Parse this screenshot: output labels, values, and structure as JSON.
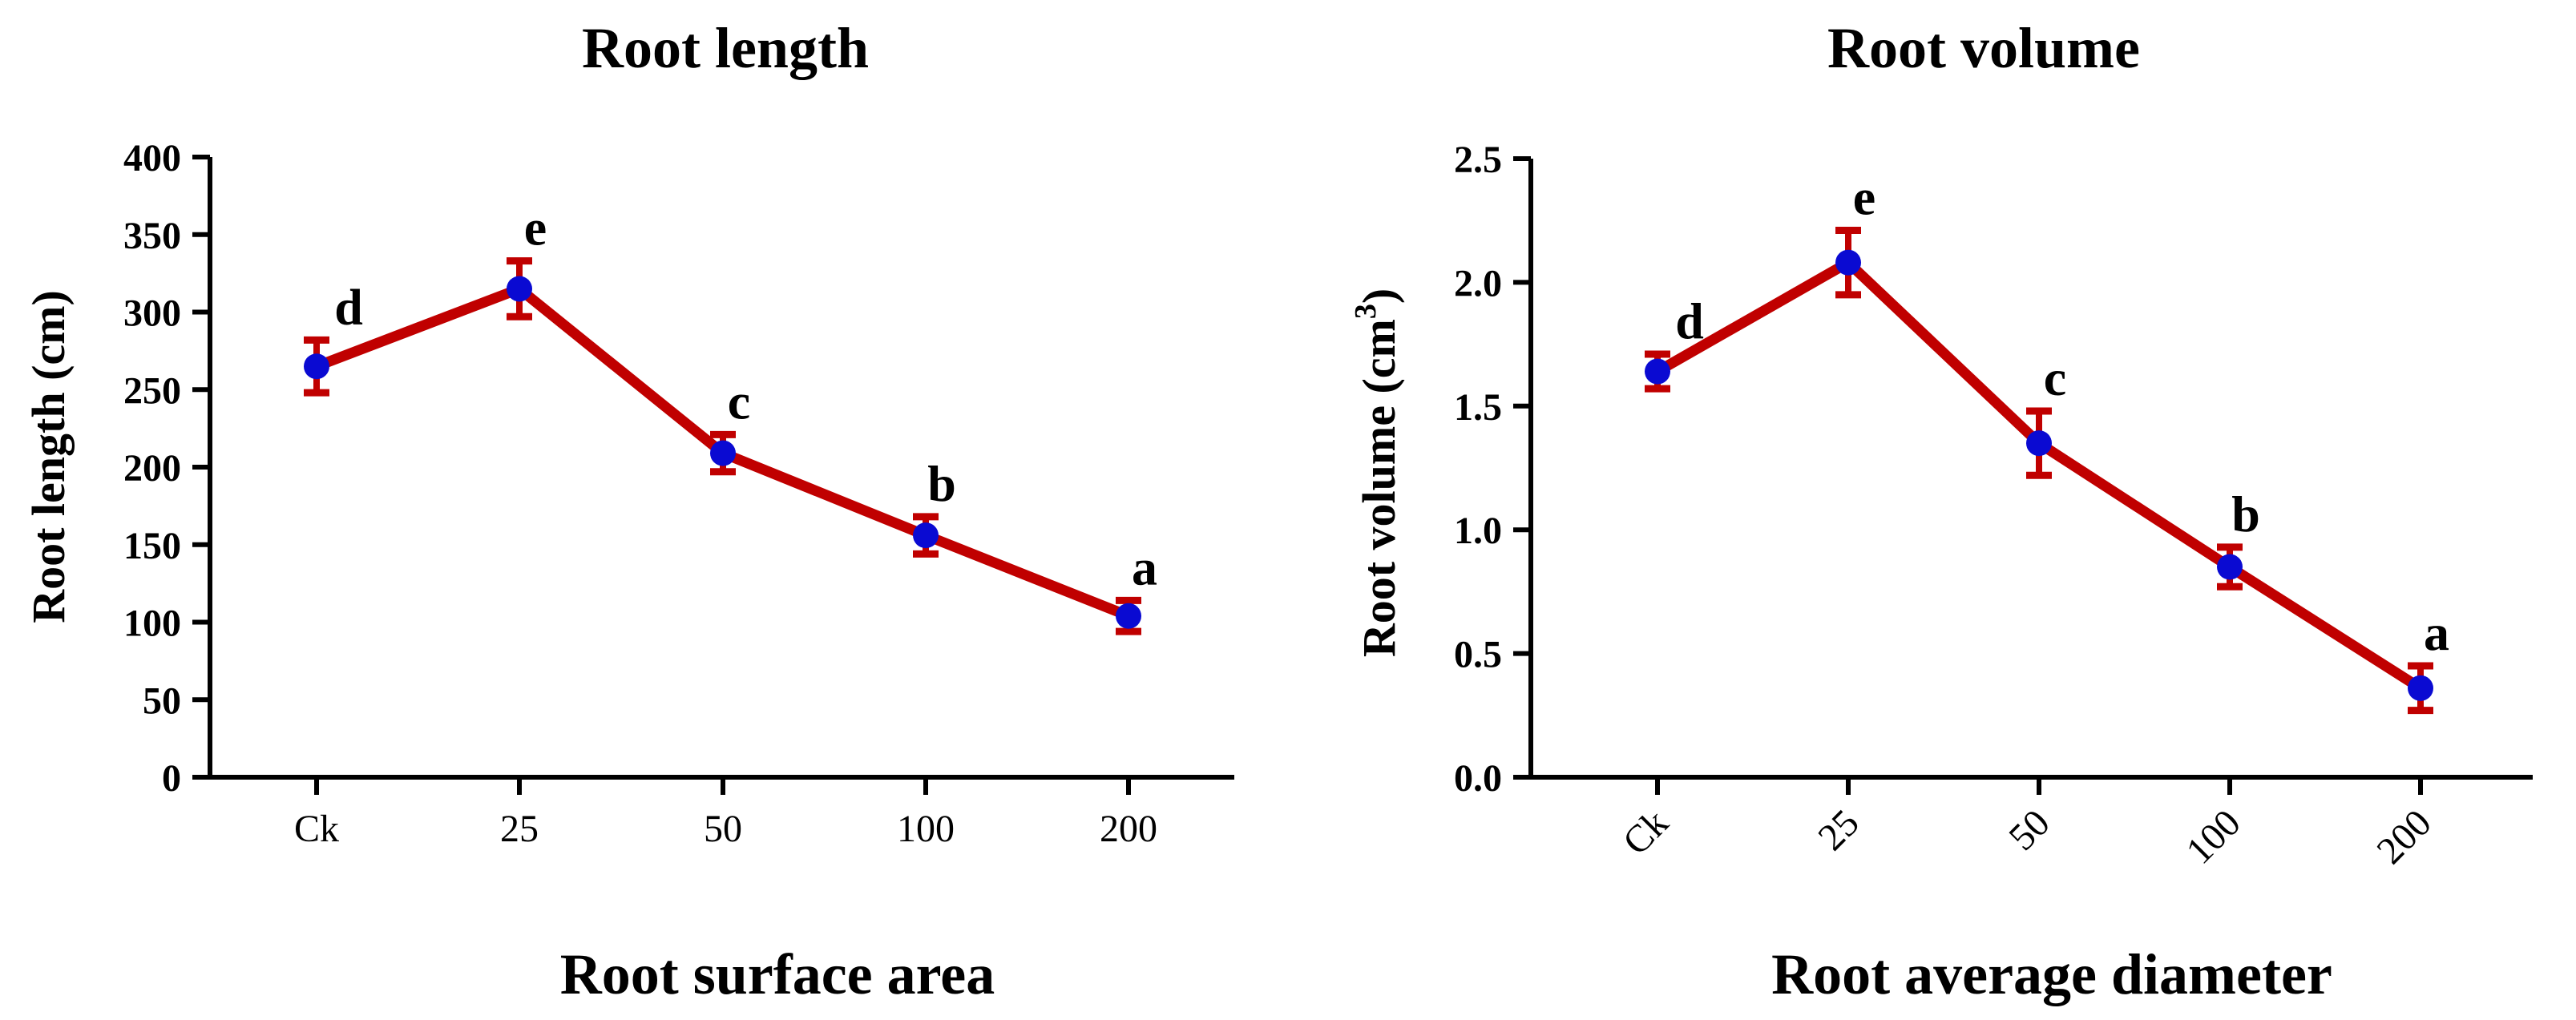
{
  "colors": {
    "line": "#c00000",
    "point": "#0a0ad2",
    "axis": "#000000"
  },
  "chart_data": [
    {
      "type": "line",
      "title": "Root length",
      "xlabel": "Root surface area",
      "ylabel": "Root length (cm)",
      "categories": [
        "Ck",
        "25",
        "50",
        "100",
        "200"
      ],
      "values": [
        265,
        315,
        209,
        156,
        104
      ],
      "errors": [
        17,
        18,
        12,
        12,
        10
      ],
      "letters": [
        "d",
        "e",
        "c",
        "b",
        "a"
      ],
      "ylim": [
        0,
        400
      ],
      "yticks": [
        "0",
        "50",
        "100",
        "150",
        "200",
        "250",
        "300",
        "350",
        "400"
      ],
      "xtick_rotation": 0
    },
    {
      "type": "line",
      "title": "Root volume",
      "xlabel": "Root average diameter",
      "ylabel": "Root volume (cm",
      "ylabel_sup": "3",
      "ylabel_end": ")",
      "categories": [
        "Ck",
        "25",
        "50",
        "100",
        "200"
      ],
      "values": [
        1.64,
        2.08,
        1.35,
        0.85,
        0.36
      ],
      "errors": [
        0.07,
        0.13,
        0.13,
        0.08,
        0.09
      ],
      "letters": [
        "d",
        "e",
        "c",
        "b",
        "a"
      ],
      "ylim": [
        0,
        2.5
      ],
      "yticks": [
        "0.0",
        "0.5",
        "1.0",
        "1.5",
        "2.0",
        "2.5"
      ],
      "xtick_rotation": -45
    }
  ]
}
